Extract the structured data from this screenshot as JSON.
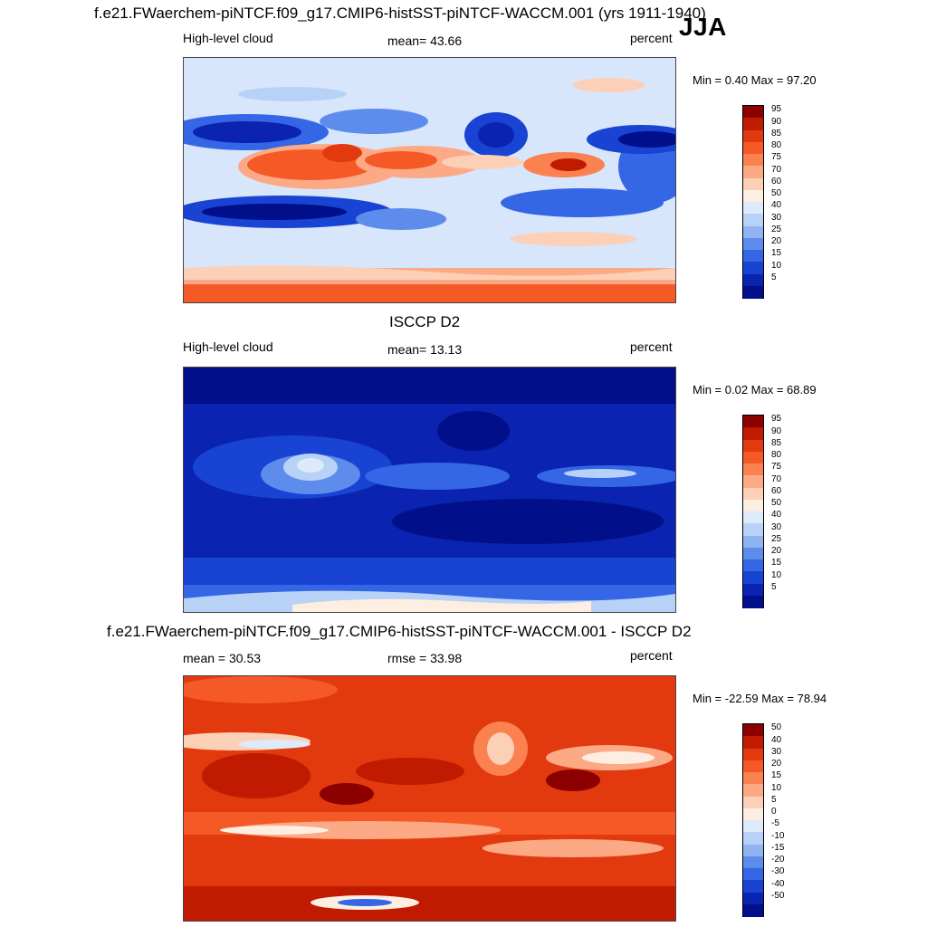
{
  "header": {
    "main_title": "f.e21.FWaerchem-piNTCF.f09_g17.CMIP6-histSST-piNTCF-WACCM.001 (yrs 1911-1940)",
    "season": "JJA"
  },
  "panels": [
    {
      "id": "model",
      "variable_label": "High-level cloud",
      "stat_label": "mean=  43.66",
      "units_label": "percent",
      "minmax_label": "Min =   0.40 Max =  97.20",
      "colorbar": {
        "tick_labels": [
          "95",
          "90",
          "85",
          "80",
          "75",
          "70",
          "60",
          "50",
          "40",
          "30",
          "25",
          "20",
          "15",
          "10",
          "5"
        ],
        "colors": [
          "#8c0000",
          "#c01a00",
          "#e23a0e",
          "#f55a26",
          "#fb8250",
          "#fcaa86",
          "#fcd0b7",
          "#fdeee2",
          "#dceafb",
          "#b8d2f7",
          "#8fb4f0",
          "#5d8cec",
          "#3466e6",
          "#1843d3",
          "#0a23b0",
          "#020f8a"
        ]
      },
      "fields": {
        "stats": {
          "mean": 43.66,
          "min": 0.4,
          "max": 97.2,
          "units": "percent"
        }
      }
    },
    {
      "id": "obs",
      "panel_title": "ISCCP D2",
      "variable_label": "High-level cloud",
      "stat_label": "mean=  13.13",
      "units_label": "percent",
      "minmax_label": "Min =   0.02 Max =  68.89",
      "colorbar": {
        "tick_labels": [
          "95",
          "90",
          "85",
          "80",
          "75",
          "70",
          "60",
          "50",
          "40",
          "30",
          "25",
          "20",
          "15",
          "10",
          "5"
        ],
        "colors": [
          "#8c0000",
          "#c01a00",
          "#e23a0e",
          "#f55a26",
          "#fb8250",
          "#fcaa86",
          "#fcd0b7",
          "#fdeee2",
          "#dceafb",
          "#b8d2f7",
          "#8fb4f0",
          "#5d8cec",
          "#3466e6",
          "#1843d3",
          "#0a23b0",
          "#020f8a"
        ]
      },
      "fields": {
        "stats": {
          "mean": 13.13,
          "min": 0.02,
          "max": 68.89,
          "units": "percent"
        }
      }
    },
    {
      "id": "diff",
      "panel_title": "f.e21.FWaerchem-piNTCF.f09_g17.CMIP6-histSST-piNTCF-WACCM.001 - ISCCP D2",
      "variable_label": "mean =  30.53",
      "stat_label": "rmse =  33.98",
      "units_label": "percent",
      "minmax_label": "Min = -22.59 Max =  78.94",
      "colorbar": {
        "tick_labels": [
          "50",
          "40",
          "30",
          "20",
          "15",
          "10",
          "5",
          "0",
          "-5",
          "-10",
          "-15",
          "-20",
          "-30",
          "-40",
          "-50"
        ],
        "colors": [
          "#8c0000",
          "#c01a00",
          "#e23a0e",
          "#f55a26",
          "#fb8250",
          "#fcaa86",
          "#fcd0b7",
          "#fdeee2",
          "#dceafb",
          "#b8d2f7",
          "#8fb4f0",
          "#5d8cec",
          "#3466e6",
          "#1843d3",
          "#0a23b0",
          "#020f8a"
        ]
      },
      "fields": {
        "stats": {
          "mean": 30.53,
          "rmse": 33.98,
          "min": -22.59,
          "max": 78.94,
          "units": "percent"
        }
      }
    }
  ]
}
